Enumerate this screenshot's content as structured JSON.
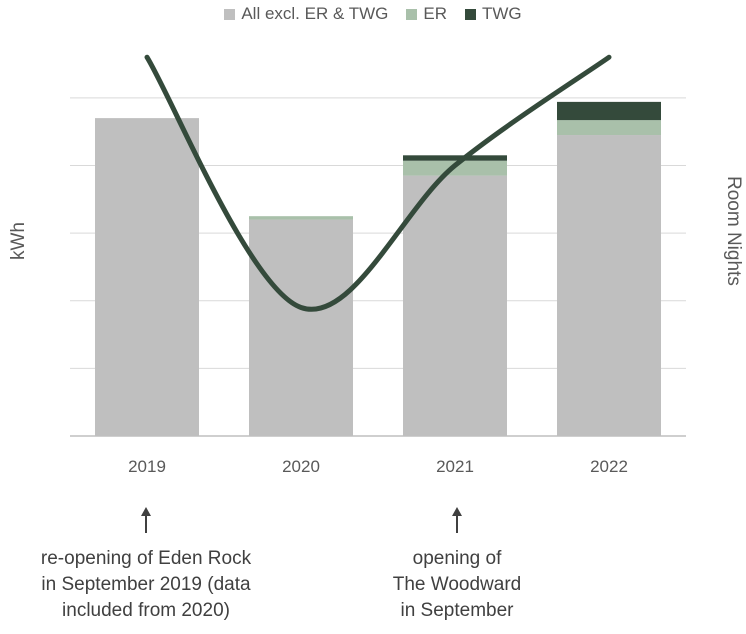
{
  "chart_data": {
    "type": "bar",
    "stacked": true,
    "categories": [
      "2019",
      "2020",
      "2021",
      "2022"
    ],
    "series": [
      {
        "name": "All excl. ER & TWG",
        "values": [
          4.7,
          3.2,
          3.85,
          4.45
        ],
        "color": "#bfbfbf"
      },
      {
        "name": "ER",
        "values": [
          0,
          0.05,
          0.22,
          0.22
        ],
        "color": "#a9c0aa"
      },
      {
        "name": "TWG",
        "values": [
          0,
          0,
          0.08,
          0.27
        ],
        "color": "#344a3b"
      }
    ],
    "line_series": {
      "values": [
        5.6,
        1.9,
        4.0,
        5.6
      ],
      "color": "#344a3b",
      "axis": "right"
    },
    "ylim": [
      0,
      5.5
    ],
    "yticks": [
      0,
      1,
      2,
      3,
      4,
      5
    ],
    "grid": true,
    "legend": "top-center",
    "ylabel": "kWh",
    "ylabel_right": "Room Nights"
  },
  "annotations": [
    {
      "category": "2019",
      "lines": [
        "re-opening of Eden Rock",
        "in September 2019 (data",
        "included from 2020)"
      ]
    },
    {
      "category": "2021",
      "lines": [
        "opening of",
        "The Woodward",
        "in September"
      ]
    }
  ]
}
